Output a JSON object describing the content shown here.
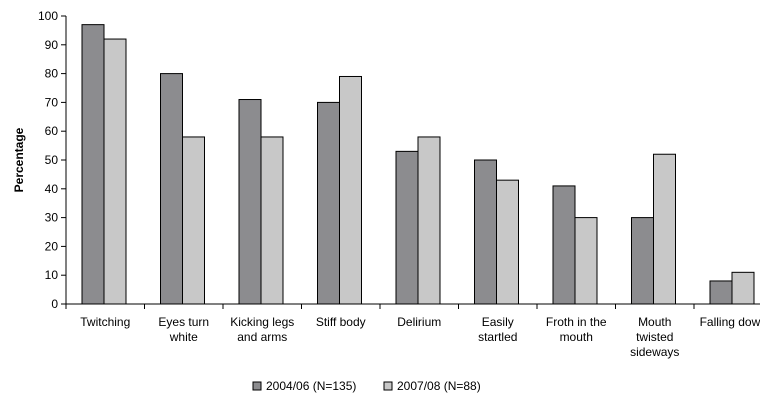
{
  "chart_data": {
    "type": "bar",
    "title": "",
    "xlabel": "",
    "ylabel": "Percentage",
    "ylim": [
      0,
      100
    ],
    "yticks": [
      0,
      10,
      20,
      30,
      40,
      50,
      60,
      70,
      80,
      90,
      100
    ],
    "grid": false,
    "legend_position": "bottom",
    "categories": [
      [
        "Twitching"
      ],
      [
        "Eyes turn",
        "white"
      ],
      [
        "Kicking legs",
        "and arms"
      ],
      [
        "Stiff body"
      ],
      [
        "Delirium"
      ],
      [
        "Easily",
        "startled"
      ],
      [
        "Froth in the",
        "mouth"
      ],
      [
        "Mouth",
        "twisted",
        "sideways"
      ],
      [
        "Falling down"
      ]
    ],
    "series": [
      {
        "name": "2004/06 (N=135)",
        "color": "#8c8c8f",
        "values": [
          97,
          80,
          71,
          70,
          53,
          50,
          41,
          30,
          8
        ]
      },
      {
        "name": "2007/08 (N=88)",
        "color": "#c8c8c8",
        "values": [
          92,
          58,
          58,
          79,
          58,
          43,
          30,
          52,
          11
        ]
      }
    ]
  }
}
